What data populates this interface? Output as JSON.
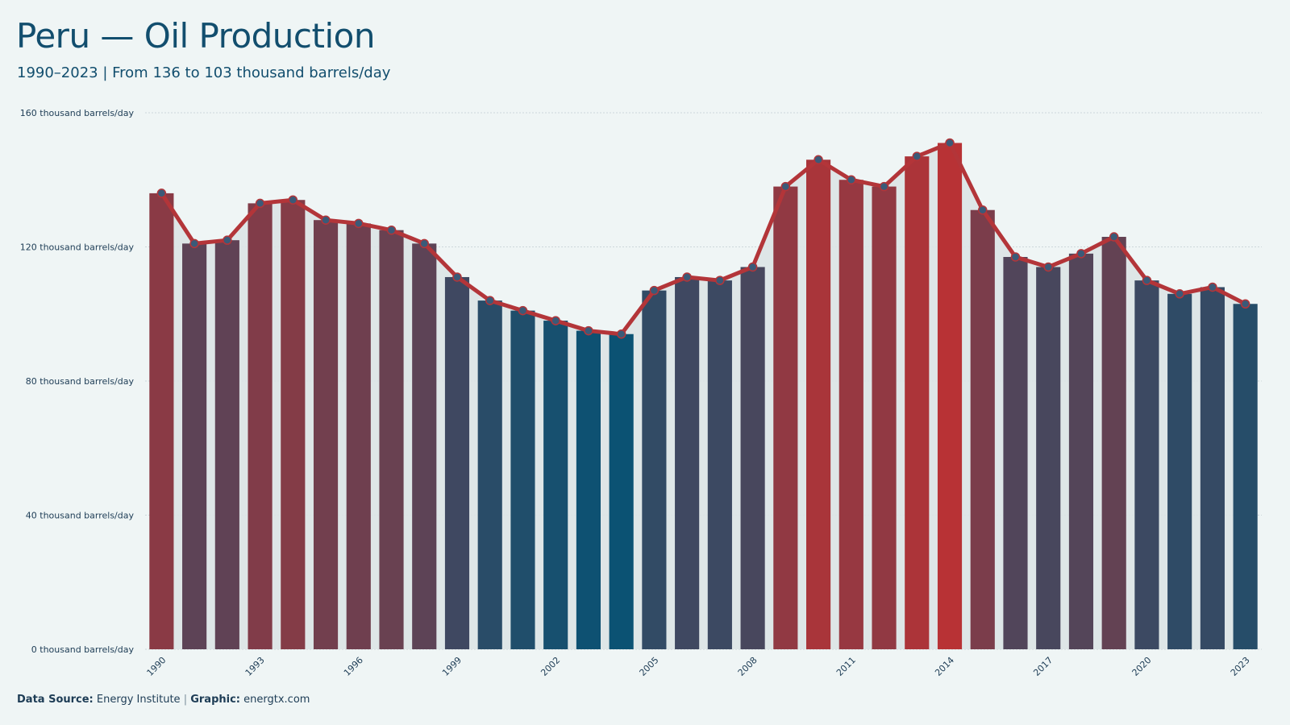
{
  "header": {
    "title": "Peru — Oil Production",
    "subtitle": "1990–2023 | From 136 to 103 thousand barrels/day"
  },
  "footer": {
    "source_label": "Data Source:",
    "source_value": "Energy Institute",
    "separator": "|",
    "graphic_label": "Graphic:",
    "graphic_value": "energtx.com"
  },
  "colors": {
    "background": "#eff5f5",
    "line": "#b33539",
    "low_bar": "#0b5273",
    "high_bar": "#b83235",
    "marker": "#3b5a78",
    "area_fill": "#dbe4e6",
    "title": "#124e6e"
  },
  "chart_data": {
    "type": "bar",
    "overlay": "line",
    "x": [
      1990,
      1991,
      1992,
      1993,
      1994,
      1995,
      1996,
      1997,
      1998,
      1999,
      2000,
      2001,
      2002,
      2003,
      2004,
      2005,
      2006,
      2007,
      2008,
      2009,
      2010,
      2011,
      2012,
      2013,
      2014,
      2015,
      2016,
      2017,
      2018,
      2019,
      2020,
      2021,
      2022,
      2023
    ],
    "values": [
      136,
      121,
      122,
      133,
      134,
      128,
      127,
      125,
      121,
      111,
      104,
      101,
      98,
      95,
      94,
      107,
      111,
      110,
      114,
      138,
      146,
      140,
      138,
      147,
      151,
      131,
      117,
      114,
      118,
      123,
      110,
      106,
      108,
      103
    ],
    "x_tick_labels": [
      "1990",
      "1993",
      "1996",
      "1999",
      "2002",
      "2005",
      "2008",
      "2011",
      "2014",
      "2017",
      "2020",
      "2023"
    ],
    "y_ticks": [
      0,
      40,
      80,
      120,
      160
    ],
    "y_tick_labels": [
      "0 thousand barrels/day",
      "40 thousand barrels/day",
      "80 thousand barrels/day",
      "120 thousand barrels/day",
      "160 thousand barrels/day"
    ],
    "ylim": [
      0,
      160
    ],
    "grid": true
  }
}
